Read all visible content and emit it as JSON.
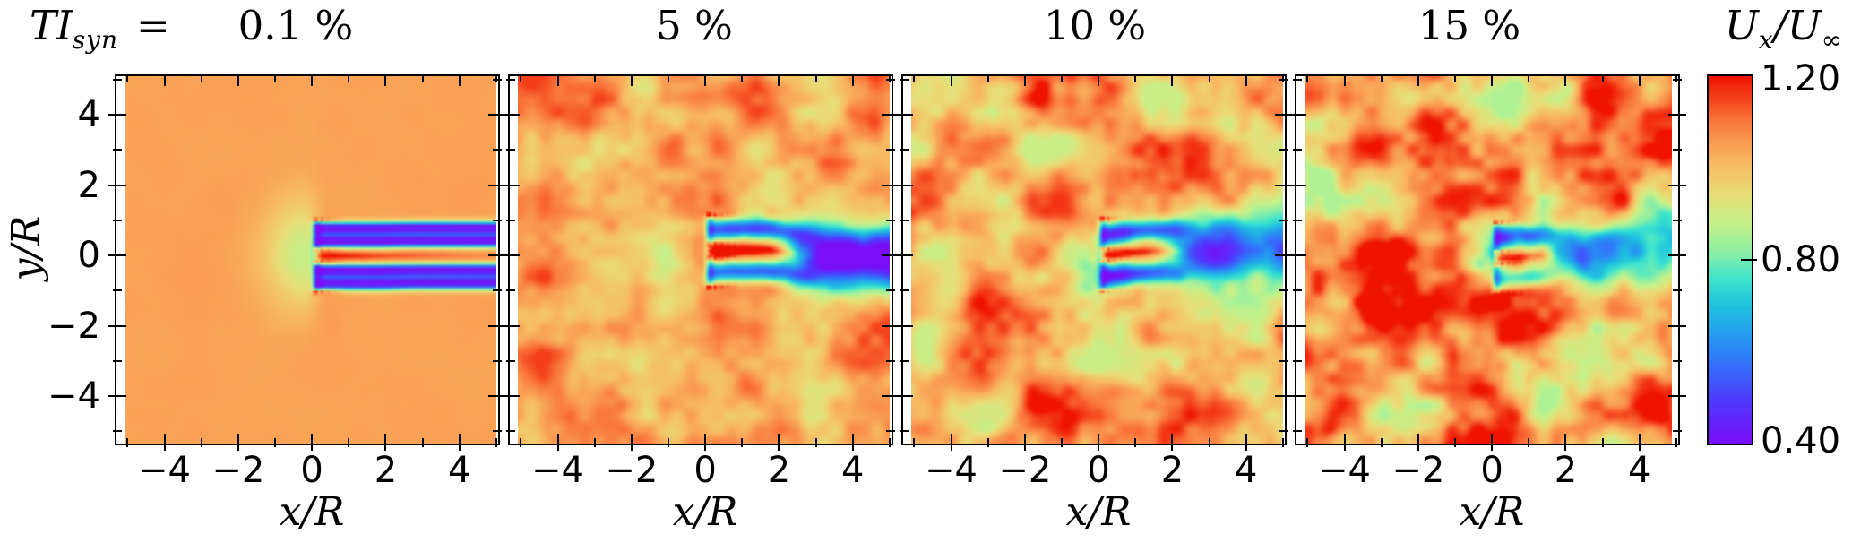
{
  "figure": {
    "kind": "matplotlib-style multi-panel heatmap figure",
    "background": "#ffffff"
  },
  "header": {
    "ti_main": "TI",
    "ti_sub": "syn",
    "ti_eq": "=",
    "panel_titles": [
      "0.1 %",
      "5 %",
      "10 %",
      "15 %"
    ],
    "cb_u1": "U",
    "cb_sub_x": "x",
    "cb_slash": "/",
    "cb_u2": "U",
    "cb_sub_inf": "∞"
  },
  "axes": {
    "xlabel": "x/R",
    "ylabel": "y/R",
    "xlim": [
      -5.3,
      5.05
    ],
    "ylim": [
      -5.35,
      5.1
    ],
    "xticks": [
      -4,
      -2,
      0,
      2,
      4
    ],
    "xtick_labels": [
      "−4",
      "−2",
      "0",
      "2",
      "4"
    ],
    "xminor": [
      -5,
      -3,
      -1,
      1,
      3,
      5
    ],
    "yticks": [
      4,
      2,
      0,
      -2,
      -4
    ],
    "ytick_labels": [
      "4",
      "2",
      "0",
      "−2",
      "−4"
    ],
    "yminor": [
      5,
      3,
      1,
      -1,
      -3,
      -5
    ]
  },
  "colorbar": {
    "tick_labels": [
      "1.20",
      "0.80",
      "0.40"
    ],
    "tick_values": [
      1.2,
      0.8,
      0.4
    ],
    "vmin": 0.4,
    "vmax": 1.2
  },
  "chart_data": {
    "type": "heatmap",
    "title": "Normalized streamwise velocity U_x/U_inf behind a rotor for increasing synthetic turbulence intensity TI_syn",
    "quantity": "U_x/U_inf",
    "xlabel": "x/R",
    "ylabel": "y/R",
    "x_range": [
      -5.3,
      5.05
    ],
    "y_range": [
      -5.35,
      5.1
    ],
    "value_range": [
      0.4,
      1.2
    ],
    "colormap_stops": [
      [
        0.0,
        "#7a0ef5"
      ],
      [
        0.12,
        "#4d3cfd"
      ],
      [
        0.25,
        "#2b85f7"
      ],
      [
        0.37,
        "#1fc0e0"
      ],
      [
        0.45,
        "#3fe5cc"
      ],
      [
        0.52,
        "#8cefa5"
      ],
      [
        0.6,
        "#c6f18a"
      ],
      [
        0.68,
        "#e9dc76"
      ],
      [
        0.76,
        "#f7bc62"
      ],
      [
        0.82,
        "#f99b51"
      ],
      [
        0.88,
        "#f9763c"
      ],
      [
        0.94,
        "#f4421d"
      ],
      [
        1.0,
        "#ef1300"
      ]
    ],
    "panels": [
      {
        "title": "0.1 %",
        "ti_percent": 0.1,
        "description": "Nearly uniform free stream (U/Uinf ~ 1.05) with laminar double-ring wake: two straight blue/violet deficit bands at |y/R| 0.2-1.0 extending from x/R=0 to the outlet, a red high-speed root jet along y=0, green induction halo upstream of the rotor, red tip/root vortex specks just behind the rotor plane.",
        "field_model": {
          "u_mean": 1.045,
          "noise_amp": 0.006,
          "seed": 3,
          "induction": 0.16,
          "meander": 0.02,
          "tilt": 0,
          "two_rings": true,
          "ring_amp": 0.62,
          "merge_x": 99,
          "merged_amp": 0,
          "jet_amp": 0.2,
          "jet_len": 2.8,
          "disc_amp": 0.16,
          "speck_amp": 0.3
        }
      },
      {
        "title": "5 %",
        "ti_percent": 5,
        "description": "Moderately turbulent background (orange with pale-green patches); wake rings merge near x/R~2.5 into one deep blue/violet meandering wake reaching the outlet; red root jet to x/R~2.",
        "field_model": {
          "u_mean": 1.04,
          "noise_amp": 0.115,
          "seed": 17,
          "induction": 0.1,
          "meander": 0.22,
          "tilt": 0,
          "two_rings": false,
          "ring_amp": 0.54,
          "merge_x": 2.6,
          "merged_amp": 0.66,
          "jet_amp": 0.3,
          "jet_len": 2.4,
          "disc_amp": 0.18,
          "speck_amp": 0.3
        }
      },
      {
        "title": "10 %",
        "ti_percent": 10,
        "description": "Stronger turbulence (large red and green patches); wake merges earlier (~x/R 2), deficit core blue/violet, stronger meandering, bright red hub jet.",
        "field_model": {
          "u_mean": 1.045,
          "noise_amp": 0.155,
          "seed": 29,
          "induction": 0.1,
          "meander": 0.3,
          "tilt": 0.015,
          "two_rings": false,
          "ring_amp": 0.52,
          "merge_x": 2.1,
          "merged_amp": 0.62,
          "jet_amp": 0.32,
          "jet_len": 2.0,
          "disc_amp": 0.18,
          "speck_amp": 0.32
        }
      },
      {
        "title": "15 %",
        "ti_percent": 15,
        "description": "Highly turbulent field with saturated red patches (U>1.2) and cyan pockets; wake short, broken and strongly meandering, drifting upward downstream; weak red hub jet.",
        "field_model": {
          "u_mean": 1.05,
          "noise_amp": 0.195,
          "seed": 41,
          "induction": 0.08,
          "meander": 0.38,
          "tilt": 0.05,
          "two_rings": false,
          "ring_amp": 0.46,
          "merge_x": 1.6,
          "merged_amp": 0.5,
          "jet_amp": 0.32,
          "jet_len": 1.3,
          "disc_amp": 0.16,
          "speck_amp": 0.34
        }
      }
    ],
    "legend_position": "right colorbar",
    "grid": false
  }
}
